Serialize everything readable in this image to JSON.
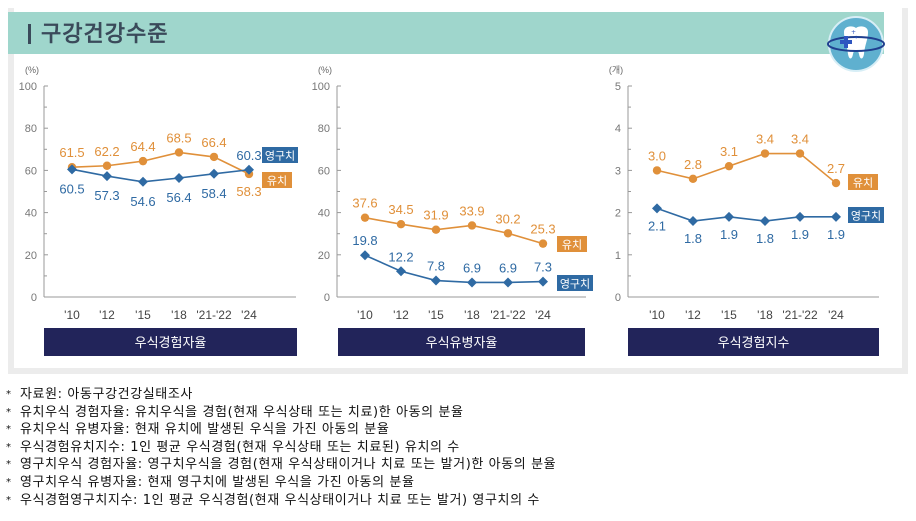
{
  "header": {
    "title": "구강건강수준",
    "logo_icon": "tooth-icon"
  },
  "colors": {
    "header_bg": "#9fd6cc",
    "orange": "#e0903a",
    "blue": "#2f6aa3",
    "title_bar": "#22245a"
  },
  "chart_data": [
    {
      "type": "line",
      "title": "우식경험자율",
      "ylabel": "(%)",
      "ylim": [
        0,
        100
      ],
      "yticks": [
        0,
        20,
        40,
        60,
        80,
        100
      ],
      "categories": [
        "'10",
        "'12",
        "'15",
        "'18",
        "'21-'22",
        "'24"
      ],
      "series": [
        {
          "name": "유치",
          "color": "#e0903a",
          "marker": "circle",
          "values": [
            61.5,
            62.2,
            64.4,
            68.5,
            66.4,
            58.3
          ]
        },
        {
          "name": "영구치",
          "color": "#2f6aa3",
          "marker": "diamond",
          "values": [
            60.5,
            57.3,
            54.6,
            56.4,
            58.4,
            60.3
          ]
        }
      ],
      "labels": {
        "유치": [
          "61.5",
          "62.2",
          "64.4",
          "68.5",
          "66.4",
          "58.3"
        ],
        "영구치": [
          "60.5",
          "57.3",
          "54.6",
          "56.4",
          "58.4",
          "60.3"
        ]
      },
      "legend": [
        "영구치",
        "유치"
      ],
      "legend_placement": "right",
      "grid": false
    },
    {
      "type": "line",
      "title": "우식유병자율",
      "ylabel": "(%)",
      "ylim": [
        0,
        100
      ],
      "yticks": [
        0,
        20,
        40,
        60,
        80,
        100
      ],
      "categories": [
        "'10",
        "'12",
        "'15",
        "'18",
        "'21-'22",
        "'24"
      ],
      "series": [
        {
          "name": "유치",
          "color": "#e0903a",
          "marker": "circle",
          "values": [
            37.6,
            34.5,
            31.9,
            33.9,
            30.2,
            25.3
          ]
        },
        {
          "name": "영구치",
          "color": "#2f6aa3",
          "marker": "diamond",
          "values": [
            19.8,
            12.2,
            7.8,
            6.9,
            6.9,
            7.3
          ]
        }
      ],
      "labels": {
        "유치": [
          "37.6",
          "34.5",
          "31.9",
          "33.9",
          "30.2",
          "25.3"
        ],
        "영구치": [
          "19.8",
          "12.2",
          "7.8",
          "6.9",
          "6.9",
          "7.3"
        ]
      },
      "legend": [
        "유치",
        "영구치"
      ],
      "legend_placement": "right",
      "grid": false
    },
    {
      "type": "line",
      "title": "우식경험지수",
      "ylabel": "(개)",
      "ylim": [
        0,
        5
      ],
      "yticks": [
        0,
        1,
        2,
        3,
        4,
        5
      ],
      "categories": [
        "'10",
        "'12",
        "'15",
        "'18",
        "'21-'22",
        "'24"
      ],
      "series": [
        {
          "name": "유치",
          "color": "#e0903a",
          "marker": "circle",
          "values": [
            3.0,
            2.8,
            3.1,
            3.4,
            3.4,
            2.7
          ]
        },
        {
          "name": "영구치",
          "color": "#2f6aa3",
          "marker": "diamond",
          "values": [
            2.1,
            1.8,
            1.9,
            1.8,
            1.9,
            1.9
          ]
        }
      ],
      "labels": {
        "유치": [
          "3.0",
          "2.8",
          "3.1",
          "3.4",
          "3.4",
          "2.7"
        ],
        "영구치": [
          "2.1",
          "1.8",
          "1.9",
          "1.8",
          "1.9",
          "1.9"
        ]
      },
      "legend": [
        "유치",
        "영구치"
      ],
      "legend_placement": "right",
      "grid": false
    }
  ],
  "notes": [
    "자료원: 아동구강건강실태조사",
    "유치우식 경험자율: 유치우식을 경험(현재 우식상태 또는 치료)한 아동의 분율",
    "유치우식 유병자율: 현재 유치에 발생된 우식을 가진 아동의 분율",
    "우식경험유치지수: 1인 평균 우식경험(현재 우식상태 또는 치료된) 유치의 수",
    "영구치우식 경험자율: 영구치우식을 경험(현재 우식상태이거나 치료 또는 발거)한 아동의 분율",
    "영구치우식 유병자율: 현재 영구치에 발생된 우식을 가진 아동의 분율",
    "우식경험영구치지수: 1인 평균 우식경험(현재 우식상태이거나 치료 또는 발거) 영구치의 수"
  ],
  "note_bullet": "*"
}
